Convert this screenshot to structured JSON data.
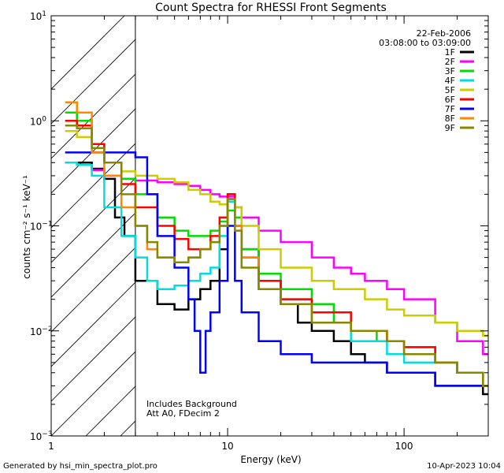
{
  "chart_data": {
    "type": "line",
    "title": "Count Spectra for RHESSI Front Segments",
    "xlabel": "Energy (keV)",
    "ylabel": "counts cm⁻² s⁻¹ keV⁻¹",
    "xscale": "log",
    "yscale": "log",
    "xlim": [
      1,
      300
    ],
    "ylim": [
      0.001,
      10
    ],
    "x_ticks": [
      {
        "value": 1,
        "label": "1"
      },
      {
        "value": 10,
        "label": "10"
      },
      {
        "value": 100,
        "label": "100"
      }
    ],
    "y_ticks": [
      {
        "value": 0.001,
        "base": "10",
        "exp": "−3"
      },
      {
        "value": 0.01,
        "base": "10",
        "exp": "−2"
      },
      {
        "value": 0.1,
        "base": "10",
        "exp": "−1"
      },
      {
        "value": 1,
        "base": "10",
        "exp": "0"
      },
      {
        "value": 10,
        "base": "10",
        "exp": "1"
      }
    ],
    "date": "22-Feb-2006",
    "time_range": "03:08:00 to 03:09:00",
    "annotations": [
      "Includes Background",
      "Att A0, FDecim 2"
    ],
    "attenuator_region": {
      "x_from": 1,
      "x_to": 3
    },
    "series": [
      {
        "name": "1F",
        "color": "#000000",
        "points": [
          [
            1.2,
            0.4
          ],
          [
            1.4,
            0.4
          ],
          [
            1.7,
            0.35
          ],
          [
            2.0,
            0.28
          ],
          [
            2.3,
            0.12
          ],
          [
            2.6,
            0.08
          ],
          [
            3.0,
            0.03
          ],
          [
            3.5,
            0.03
          ],
          [
            4,
            0.018
          ],
          [
            5,
            0.016
          ],
          [
            6,
            0.02
          ],
          [
            7,
            0.025
          ],
          [
            8,
            0.03
          ],
          [
            9,
            0.06
          ],
          [
            10,
            0.2
          ],
          [
            11,
            0.1
          ],
          [
            12,
            0.06
          ],
          [
            15,
            0.03
          ],
          [
            20,
            0.018
          ],
          [
            25,
            0.012
          ],
          [
            30,
            0.01
          ],
          [
            40,
            0.008
          ],
          [
            50,
            0.006
          ],
          [
            60,
            0.005
          ],
          [
            80,
            0.004
          ],
          [
            100,
            0.004
          ],
          [
            150,
            0.003
          ],
          [
            200,
            0.003
          ],
          [
            280,
            0.0025
          ]
        ]
      },
      {
        "name": "2F",
        "color": "#ff00ff",
        "points": [
          [
            1.2,
            0.4
          ],
          [
            1.4,
            0.38
          ],
          [
            1.7,
            0.34
          ],
          [
            2.0,
            0.3
          ],
          [
            2.5,
            0.28
          ],
          [
            3,
            0.27
          ],
          [
            4,
            0.26
          ],
          [
            5,
            0.25
          ],
          [
            6,
            0.24
          ],
          [
            7,
            0.22
          ],
          [
            8,
            0.2
          ],
          [
            9,
            0.19
          ],
          [
            10,
            0.19
          ],
          [
            11,
            0.15
          ],
          [
            12,
            0.12
          ],
          [
            15,
            0.09
          ],
          [
            20,
            0.07
          ],
          [
            30,
            0.05
          ],
          [
            40,
            0.04
          ],
          [
            50,
            0.035
          ],
          [
            60,
            0.03
          ],
          [
            80,
            0.025
          ],
          [
            100,
            0.02
          ],
          [
            150,
            0.012
          ],
          [
            200,
            0.008
          ],
          [
            280,
            0.006
          ]
        ]
      },
      {
        "name": "3F",
        "color": "#00dd00",
        "points": [
          [
            1.2,
            1.2
          ],
          [
            1.4,
            1.0
          ],
          [
            1.7,
            0.6
          ],
          [
            2.0,
            0.4
          ],
          [
            2.5,
            0.28
          ],
          [
            3,
            0.2
          ],
          [
            4,
            0.12
          ],
          [
            5,
            0.09
          ],
          [
            6,
            0.08
          ],
          [
            7,
            0.08
          ],
          [
            8,
            0.09
          ],
          [
            9,
            0.11
          ],
          [
            10,
            0.14
          ],
          [
            11,
            0.12
          ],
          [
            12,
            0.06
          ],
          [
            15,
            0.035
          ],
          [
            20,
            0.025
          ],
          [
            30,
            0.018
          ],
          [
            40,
            0.012
          ],
          [
            50,
            0.01
          ],
          [
            70,
            0.008
          ],
          [
            100,
            0.007
          ],
          [
            150,
            0.005
          ],
          [
            200,
            0.004
          ],
          [
            280,
            0.003
          ]
        ]
      },
      {
        "name": "4F",
        "color": "#00dddd",
        "points": [
          [
            1.2,
            0.4
          ],
          [
            1.4,
            0.38
          ],
          [
            1.7,
            0.3
          ],
          [
            2.0,
            0.15
          ],
          [
            2.5,
            0.08
          ],
          [
            3,
            0.05
          ],
          [
            3.5,
            0.03
          ],
          [
            4,
            0.025
          ],
          [
            5,
            0.027
          ],
          [
            6,
            0.03
          ],
          [
            7,
            0.035
          ],
          [
            8,
            0.04
          ],
          [
            9,
            0.08
          ],
          [
            10,
            0.17
          ],
          [
            11,
            0.1
          ],
          [
            12,
            0.05
          ],
          [
            15,
            0.025
          ],
          [
            20,
            0.02
          ],
          [
            30,
            0.012
          ],
          [
            50,
            0.008
          ],
          [
            80,
            0.006
          ],
          [
            100,
            0.005
          ],
          [
            150,
            0.005
          ],
          [
            200,
            0.004
          ],
          [
            280,
            0.003
          ]
        ]
      },
      {
        "name": "5F",
        "color": "#cccc00",
        "points": [
          [
            1.2,
            0.8
          ],
          [
            1.4,
            0.7
          ],
          [
            1.7,
            0.5
          ],
          [
            2.0,
            0.4
          ],
          [
            2.5,
            0.33
          ],
          [
            3,
            0.3
          ],
          [
            4,
            0.28
          ],
          [
            5,
            0.26
          ],
          [
            6,
            0.22
          ],
          [
            7,
            0.2
          ],
          [
            8,
            0.17
          ],
          [
            9,
            0.16
          ],
          [
            10,
            0.18
          ],
          [
            11,
            0.15
          ],
          [
            12,
            0.1
          ],
          [
            15,
            0.06
          ],
          [
            20,
            0.04
          ],
          [
            30,
            0.03
          ],
          [
            40,
            0.025
          ],
          [
            60,
            0.02
          ],
          [
            80,
            0.016
          ],
          [
            100,
            0.014
          ],
          [
            150,
            0.012
          ],
          [
            200,
            0.01
          ],
          [
            280,
            0.009
          ]
        ]
      },
      {
        "name": "6F",
        "color": "#ff0000",
        "points": [
          [
            1.2,
            1.0
          ],
          [
            1.4,
            0.9
          ],
          [
            1.7,
            0.6
          ],
          [
            2.0,
            0.4
          ],
          [
            2.5,
            0.25
          ],
          [
            3,
            0.15
          ],
          [
            4,
            0.1
          ],
          [
            5,
            0.075
          ],
          [
            6,
            0.06
          ],
          [
            7,
            0.06
          ],
          [
            8,
            0.08
          ],
          [
            9,
            0.12
          ],
          [
            10,
            0.2
          ],
          [
            11,
            0.1
          ],
          [
            12,
            0.05
          ],
          [
            15,
            0.03
          ],
          [
            20,
            0.02
          ],
          [
            30,
            0.015
          ],
          [
            50,
            0.01
          ],
          [
            80,
            0.008
          ],
          [
            100,
            0.007
          ],
          [
            150,
            0.005
          ],
          [
            200,
            0.004
          ],
          [
            280,
            0.003
          ]
        ]
      },
      {
        "name": "7F",
        "color": "#0000ff",
        "points": [
          [
            1.2,
            0.5
          ],
          [
            1.4,
            0.5
          ],
          [
            1.7,
            0.5
          ],
          [
            2.0,
            0.5
          ],
          [
            2.5,
            0.5
          ],
          [
            3,
            0.45
          ],
          [
            3.5,
            0.2
          ],
          [
            4,
            0.08
          ],
          [
            5,
            0.04
          ],
          [
            6,
            0.02
          ],
          [
            6.5,
            0.01
          ],
          [
            7,
            0.004
          ],
          [
            7.5,
            0.01
          ],
          [
            8,
            0.015
          ],
          [
            9,
            0.03
          ],
          [
            10,
            0.1
          ],
          [
            11,
            0.03
          ],
          [
            12,
            0.015
          ],
          [
            15,
            0.008
          ],
          [
            20,
            0.006
          ],
          [
            30,
            0.005
          ],
          [
            50,
            0.005
          ],
          [
            80,
            0.004
          ],
          [
            100,
            0.004
          ],
          [
            150,
            0.003
          ],
          [
            200,
            0.003
          ],
          [
            280,
            0.003
          ]
        ]
      },
      {
        "name": "8F",
        "color": "#ff8800",
        "points": [
          [
            1.2,
            1.5
          ],
          [
            1.4,
            1.2
          ],
          [
            1.7,
            0.5
          ],
          [
            2.0,
            0.3
          ],
          [
            2.5,
            0.15
          ],
          [
            3,
            0.1
          ],
          [
            3.5,
            0.06
          ],
          [
            4,
            0.05
          ],
          [
            5,
            0.045
          ],
          [
            6,
            0.05
          ],
          [
            7,
            0.06
          ],
          [
            8,
            0.07
          ],
          [
            9,
            0.1
          ],
          [
            10,
            0.18
          ],
          [
            11,
            0.1
          ],
          [
            12,
            0.05
          ],
          [
            15,
            0.025
          ],
          [
            20,
            0.018
          ],
          [
            30,
            0.012
          ],
          [
            50,
            0.01
          ],
          [
            80,
            0.008
          ],
          [
            100,
            0.006
          ],
          [
            150,
            0.005
          ],
          [
            200,
            0.004
          ],
          [
            280,
            0.003
          ]
        ]
      },
      {
        "name": "9F",
        "color": "#888800",
        "points": [
          [
            1.2,
            0.9
          ],
          [
            1.4,
            0.85
          ],
          [
            1.7,
            0.55
          ],
          [
            2.0,
            0.4
          ],
          [
            2.5,
            0.2
          ],
          [
            3,
            0.1
          ],
          [
            3.5,
            0.07
          ],
          [
            4,
            0.05
          ],
          [
            5,
            0.045
          ],
          [
            6,
            0.05
          ],
          [
            7,
            0.06
          ],
          [
            8,
            0.07
          ],
          [
            9,
            0.1
          ],
          [
            10,
            0.18
          ],
          [
            11,
            0.09
          ],
          [
            12,
            0.04
          ],
          [
            15,
            0.025
          ],
          [
            20,
            0.018
          ],
          [
            30,
            0.012
          ],
          [
            50,
            0.01
          ],
          [
            80,
            0.008
          ],
          [
            100,
            0.006
          ],
          [
            150,
            0.005
          ],
          [
            200,
            0.004
          ],
          [
            280,
            0.003
          ]
        ]
      }
    ]
  },
  "footer": {
    "left": "Generated by hsi_min_spectra_plot.pro",
    "right": "10-Apr-2023 10:04"
  }
}
